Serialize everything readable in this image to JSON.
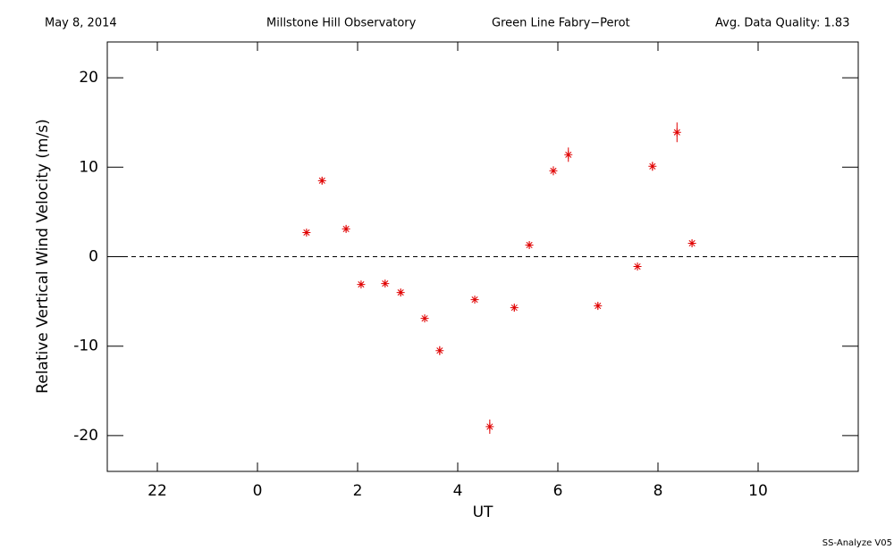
{
  "chart_data": {
    "type": "scatter",
    "date": "May 8, 2014",
    "observatory": "Millstone Hill Observatory",
    "instrument": "Green Line Fabry−Perot",
    "quality": "Avg. Data Quality: 1.83",
    "footer": "SS-Analyze V05",
    "xlabel": "UT",
    "ylabel": "Relative Vertical Wind Velocity (m/s)",
    "xlim": [
      -3,
      12
    ],
    "xticks": [
      {
        "value": -2,
        "label": "22"
      },
      0,
      2,
      4,
      6,
      8,
      10
    ],
    "ylim": [
      -24,
      24
    ],
    "yticks": [
      -20,
      -10,
      0,
      10,
      20
    ],
    "reference_line": 0,
    "series": [
      {
        "color": "#e00000",
        "x": [
          0.98,
          1.29,
          1.77,
          2.07,
          2.55,
          2.86,
          3.34,
          3.64,
          4.34,
          4.64,
          5.13,
          5.43,
          5.91,
          6.21,
          6.8,
          7.59,
          7.89,
          8.38,
          8.68
        ],
        "values": [
          2.7,
          8.5,
          3.1,
          -3.1,
          -3.0,
          -4.0,
          -6.9,
          -10.5,
          -4.8,
          -19.0,
          -5.7,
          1.3,
          9.6,
          11.4,
          -5.5,
          -1.1,
          10.1,
          13.9,
          1.5
        ],
        "errors": [
          0.3,
          0.4,
          0.4,
          0.3,
          0.3,
          0.4,
          0.4,
          0.5,
          0.4,
          0.8,
          0.4,
          0.4,
          0.5,
          0.8,
          0.4,
          0.4,
          0.5,
          1.1,
          0.4
        ]
      }
    ]
  }
}
